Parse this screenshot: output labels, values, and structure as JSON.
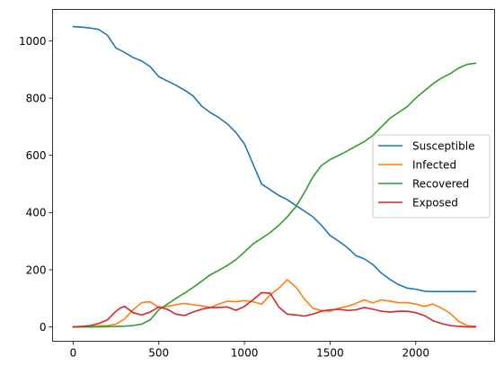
{
  "chart_data": {
    "type": "line",
    "title": "",
    "xlabel": "",
    "ylabel": "",
    "xlim": [
      -120,
      2460
    ],
    "ylim": [
      -50,
      1110
    ],
    "xticks": [
      0,
      500,
      1000,
      1500,
      2000
    ],
    "yticks": [
      0,
      200,
      400,
      600,
      800,
      1000
    ],
    "grid": false,
    "legend_position": "center-right",
    "series": [
      {
        "name": "Susceptible",
        "color": "#1f77b4",
        "x": [
          0,
          50,
          100,
          150,
          200,
          250,
          300,
          350,
          400,
          450,
          500,
          550,
          600,
          650,
          700,
          750,
          800,
          850,
          900,
          950,
          1000,
          1050,
          1100,
          1150,
          1200,
          1250,
          1300,
          1350,
          1400,
          1450,
          1500,
          1550,
          1600,
          1650,
          1700,
          1750,
          1800,
          1850,
          1900,
          1950,
          2000,
          2050,
          2100,
          2200,
          2350
        ],
        "values": [
          1050,
          1048,
          1045,
          1040,
          1020,
          975,
          960,
          942,
          930,
          910,
          875,
          860,
          845,
          828,
          808,
          772,
          750,
          732,
          710,
          680,
          640,
          570,
          500,
          480,
          460,
          445,
          425,
          405,
          385,
          355,
          320,
          300,
          278,
          250,
          238,
          218,
          188,
          166,
          148,
          136,
          132,
          125,
          124,
          124,
          124
        ]
      },
      {
        "name": "Infected",
        "color": "#ff7f0e",
        "x": [
          0,
          100,
          200,
          250,
          300,
          350,
          400,
          450,
          500,
          550,
          600,
          650,
          700,
          750,
          800,
          850,
          900,
          950,
          1000,
          1050,
          1100,
          1150,
          1200,
          1250,
          1300,
          1350,
          1400,
          1450,
          1500,
          1550,
          1600,
          1650,
          1700,
          1750,
          1800,
          1850,
          1900,
          1950,
          2000,
          2050,
          2100,
          2150,
          2200,
          2250,
          2300,
          2350
        ],
        "values": [
          0,
          2,
          5,
          10,
          28,
          60,
          85,
          88,
          68,
          72,
          78,
          82,
          78,
          74,
          68,
          80,
          90,
          88,
          92,
          88,
          80,
          112,
          135,
          165,
          140,
          98,
          65,
          58,
          55,
          66,
          72,
          82,
          95,
          84,
          95,
          90,
          85,
          85,
          80,
          72,
          80,
          66,
          48,
          20,
          5,
          2
        ]
      },
      {
        "name": "Recovered",
        "color": "#2ca02c",
        "x": [
          0,
          100,
          200,
          250,
          300,
          350,
          400,
          450,
          500,
          550,
          600,
          650,
          700,
          750,
          800,
          850,
          900,
          950,
          1000,
          1050,
          1100,
          1150,
          1200,
          1250,
          1300,
          1350,
          1400,
          1450,
          1500,
          1550,
          1600,
          1650,
          1700,
          1750,
          1800,
          1850,
          1900,
          1950,
          2000,
          2050,
          2100,
          2150,
          2200,
          2250,
          2300,
          2350
        ],
        "values": [
          0,
          0,
          1,
          2,
          3,
          5,
          10,
          25,
          60,
          80,
          100,
          118,
          138,
          160,
          182,
          198,
          215,
          235,
          262,
          290,
          310,
          330,
          355,
          385,
          420,
          470,
          525,
          565,
          585,
          600,
          615,
          632,
          648,
          670,
          700,
          730,
          750,
          770,
          800,
          825,
          850,
          870,
          885,
          905,
          918,
          922
        ]
      },
      {
        "name": "Exposed",
        "color": "#d62728",
        "x": [
          0,
          50,
          100,
          150,
          200,
          250,
          280,
          300,
          350,
          400,
          450,
          500,
          550,
          600,
          650,
          700,
          750,
          800,
          850,
          900,
          950,
          1000,
          1050,
          1100,
          1150,
          1200,
          1250,
          1300,
          1350,
          1400,
          1450,
          1500,
          1550,
          1600,
          1650,
          1700,
          1750,
          1800,
          1850,
          1900,
          1950,
          2000,
          2050,
          2100,
          2150,
          2200,
          2250,
          2300,
          2350
        ],
        "values": [
          0,
          2,
          5,
          12,
          25,
          55,
          68,
          72,
          50,
          42,
          52,
          70,
          62,
          45,
          40,
          52,
          62,
          68,
          68,
          70,
          58,
          72,
          95,
          120,
          118,
          70,
          45,
          42,
          38,
          45,
          55,
          60,
          62,
          58,
          60,
          68,
          62,
          55,
          52,
          55,
          55,
          50,
          40,
          22,
          12,
          5,
          2,
          0,
          0
        ]
      }
    ]
  }
}
